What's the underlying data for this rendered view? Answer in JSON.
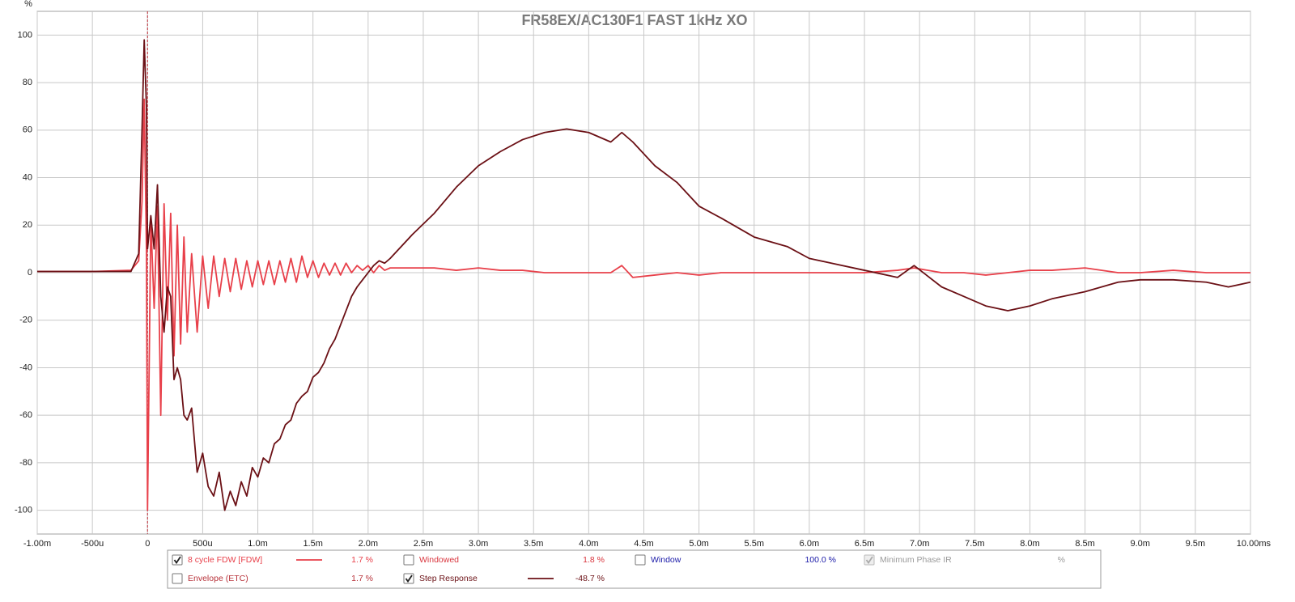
{
  "chart_data": {
    "type": "line",
    "title": "FR58EX/AC130F1 FAST 1kHz XO",
    "y_label": "%",
    "grid": true,
    "xlim": [
      -1,
      10
    ],
    "ylim": [
      -110,
      110
    ],
    "xticks": [
      {
        "value": -1,
        "label": "-1.00m"
      },
      {
        "value": -0.5,
        "label": "-500u"
      },
      0,
      {
        "value": 0.5,
        "label": "500u"
      },
      {
        "value": 1,
        "label": "1.0m"
      },
      {
        "value": 1.5,
        "label": "1.5m"
      },
      {
        "value": 2,
        "label": "2.0m"
      },
      {
        "value": 2.5,
        "label": "2.5m"
      },
      {
        "value": 3,
        "label": "3.0m"
      },
      {
        "value": 3.5,
        "label": "3.5m"
      },
      {
        "value": 4,
        "label": "4.0m"
      },
      {
        "value": 4.5,
        "label": "4.5m"
      },
      {
        "value": 5,
        "label": "5.0m"
      },
      {
        "value": 5.5,
        "label": "5.5m"
      },
      {
        "value": 6,
        "label": "6.0m"
      },
      {
        "value": 6.5,
        "label": "6.5m"
      },
      {
        "value": 7,
        "label": "7.0m"
      },
      {
        "value": 7.5,
        "label": "7.5m"
      },
      {
        "value": 8,
        "label": "8.0m"
      },
      {
        "value": 8.5,
        "label": "8.5m"
      },
      {
        "value": 9,
        "label": "9.0m"
      },
      {
        "value": 9.5,
        "label": "9.5m"
      },
      {
        "value": 10,
        "label": "10.00ms"
      }
    ],
    "yticks": [
      -100,
      -80,
      -60,
      -40,
      -20,
      0,
      20,
      40,
      60,
      80,
      100
    ],
    "x": [
      -1,
      -0.5,
      -0.15,
      -0.08,
      -0.05,
      -0.03,
      -0.01,
      0,
      0.03,
      0.06,
      0.09,
      0.12,
      0.15,
      0.18,
      0.21,
      0.24,
      0.27,
      0.3,
      0.33,
      0.36,
      0.4,
      0.45,
      0.5,
      0.55,
      0.6,
      0.65,
      0.7,
      0.75,
      0.8,
      0.85,
      0.9,
      0.95,
      1.0,
      1.05,
      1.1,
      1.15,
      1.2,
      1.25,
      1.3,
      1.35,
      1.4,
      1.45,
      1.5,
      1.55,
      1.6,
      1.65,
      1.7,
      1.75,
      1.8,
      1.85,
      1.9,
      1.95,
      2.0,
      2.05,
      2.1,
      2.15,
      2.2,
      2.4,
      2.6,
      2.8,
      3.0,
      3.2,
      3.4,
      3.6,
      3.8,
      4.0,
      4.2,
      4.3,
      4.4,
      4.6,
      4.8,
      5.0,
      5.2,
      5.5,
      5.8,
      6.0,
      6.2,
      6.5,
      6.8,
      6.95,
      7.2,
      7.4,
      7.6,
      7.8,
      8.0,
      8.2,
      8.5,
      8.8,
      9.0,
      9.3,
      9.6,
      9.8,
      10
    ],
    "series": [
      {
        "name": "8 cycle FDW [FDW]",
        "color": "#e8404a",
        "legend_value": "1.7 %",
        "checked": true,
        "values": [
          0.5,
          0.5,
          1,
          5,
          30,
          73,
          10,
          -100,
          22,
          -15,
          28,
          -60,
          29,
          -20,
          25,
          -35,
          20,
          -30,
          15,
          -25,
          8,
          -25,
          7,
          -15,
          7,
          -10,
          6,
          -8,
          6,
          -7,
          5,
          -6,
          5,
          -5,
          5,
          -5,
          5,
          -4,
          6,
          -4,
          7,
          -2,
          5,
          -2,
          4,
          -1,
          4,
          -1,
          4,
          0,
          3,
          1,
          3,
          0,
          3,
          1,
          2,
          2,
          2,
          1,
          2,
          1,
          1,
          0,
          0,
          0,
          0,
          3,
          -2,
          -1,
          0,
          -1,
          0,
          0,
          0,
          0,
          0,
          0,
          1,
          2,
          0,
          0,
          -1,
          0,
          1,
          1,
          2,
          0,
          0,
          1,
          0,
          0,
          0
        ]
      },
      {
        "name": "Step Response",
        "color": "#6b1015",
        "legend_value": "-48.7 %",
        "checked": true,
        "values": [
          0.5,
          0.5,
          0.5,
          8,
          60,
          98,
          70,
          10,
          24,
          10,
          37,
          -10,
          -25,
          -6,
          -10,
          -45,
          -40,
          -45,
          -60,
          -62,
          -57,
          -84,
          -76,
          -90,
          -94,
          -84,
          -100,
          -92,
          -98,
          -88,
          -94,
          -82,
          -86,
          -78,
          -80,
          -72,
          -70,
          -64,
          -62,
          -55,
          -52,
          -50,
          -44,
          -42,
          -38,
          -32,
          -28,
          -22,
          -16,
          -10,
          -6,
          -3,
          0,
          3,
          5,
          4,
          6,
          16,
          25,
          36,
          45,
          51,
          56,
          59,
          60.5,
          59,
          55,
          59,
          55,
          45,
          38,
          28,
          23,
          15,
          11,
          6,
          4,
          1,
          -2,
          3,
          -6,
          -10,
          -14,
          -16,
          -14,
          -11,
          -8,
          -4,
          -3,
          -3,
          -4,
          -6,
          -4
        ]
      }
    ],
    "legend_items": [
      {
        "name": "Windowed",
        "legend_value": "1.8 %",
        "checked": false,
        "color": "#d9363e"
      },
      {
        "name": "Window",
        "legend_value": "100.0 %",
        "checked": false,
        "color": "#1a1aa8"
      },
      {
        "name": "Minimum Phase IR",
        "legend_value": "%",
        "checked": true,
        "color": "#9a9a9a"
      },
      {
        "name": "Envelope (ETC)",
        "legend_value": "1.7 %",
        "checked": false,
        "color": "#b8323a"
      }
    ]
  }
}
